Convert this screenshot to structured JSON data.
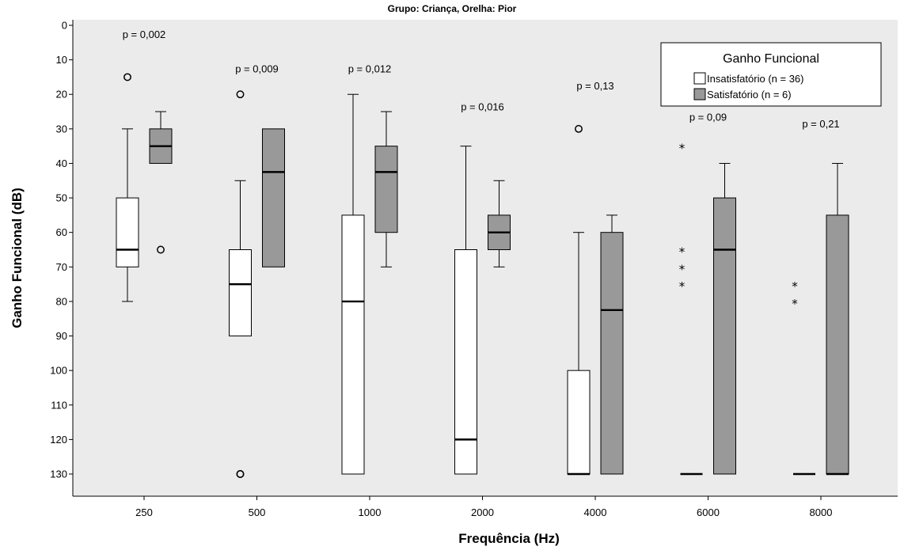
{
  "chart_data": {
    "type": "boxplot",
    "title": "Grupo: Criança, Orelha: Pior",
    "xlabel": "Frequência (Hz)",
    "ylabel": "Ganho Funcional (dB)",
    "ylim": [
      0,
      130
    ],
    "y_reversed": true,
    "y_ticks": [
      "0",
      "10",
      "20",
      "30",
      "40",
      "50",
      "60",
      "70",
      "80",
      "90",
      "100",
      "110",
      "120",
      "130"
    ],
    "categories": [
      "250",
      "500",
      "1000",
      "2000",
      "4000",
      "6000",
      "8000"
    ],
    "p_values": [
      "p = 0,002",
      "p = 0,009",
      "p = 0,012",
      "p = 0,016",
      "p = 0,13",
      "p = 0,09",
      "p = 0,21"
    ],
    "legend": {
      "title": "Ganho Funcional",
      "position": "top-right",
      "entries": [
        "Insatisfatório (n = 36)",
        "Satisfatório (n = 6)"
      ]
    },
    "series": [
      {
        "name": "Insatisfatório (n = 36)",
        "color": "#ffffff",
        "boxes": [
          {
            "category": "250",
            "whisker_low": 30,
            "q1": 50,
            "median": 65,
            "q3": 70,
            "whisker_high": 80,
            "outliers": [
              15
            ],
            "extremes": []
          },
          {
            "category": "500",
            "whisker_low": 45,
            "q1": 65,
            "median": 75,
            "q3": 90,
            "whisker_high": 90,
            "outliers": [
              20,
              130,
              130
            ],
            "extremes": []
          },
          {
            "category": "1000",
            "whisker_low": 20,
            "q1": 55,
            "median": 80,
            "q3": 130,
            "whisker_high": 130,
            "outliers": [],
            "extremes": []
          },
          {
            "category": "2000",
            "whisker_low": 35,
            "q1": 65,
            "median": 120,
            "q3": 130,
            "whisker_high": 130,
            "outliers": [],
            "extremes": []
          },
          {
            "category": "4000",
            "whisker_low": 60,
            "q1": 100,
            "median": 130,
            "q3": 130,
            "whisker_high": 130,
            "outliers": [
              30
            ],
            "extremes": []
          },
          {
            "category": "6000",
            "whisker_low": 130,
            "q1": 130,
            "median": 130,
            "q3": 130,
            "whisker_high": 130,
            "outliers": [],
            "extremes": [
              35,
              65,
              70,
              75
            ]
          },
          {
            "category": "8000",
            "whisker_low": 130,
            "q1": 130,
            "median": 130,
            "q3": 130,
            "whisker_high": 130,
            "outliers": [],
            "extremes": [
              75,
              80
            ]
          }
        ]
      },
      {
        "name": "Satisfatório (n = 6)",
        "color": "#999999",
        "boxes": [
          {
            "category": "250",
            "whisker_low": 25,
            "q1": 30,
            "median": 35,
            "q3": 40,
            "whisker_high": 40,
            "outliers": [
              65
            ],
            "extremes": []
          },
          {
            "category": "500",
            "whisker_low": 30,
            "q1": 30,
            "median": 42.5,
            "q3": 70,
            "whisker_high": 70,
            "outliers": [],
            "extremes": []
          },
          {
            "category": "1000",
            "whisker_low": 25,
            "q1": 35,
            "median": 42.5,
            "q3": 60,
            "whisker_high": 70,
            "outliers": [],
            "extremes": []
          },
          {
            "category": "2000",
            "whisker_low": 45,
            "q1": 55,
            "median": 60,
            "q3": 65,
            "whisker_high": 70,
            "outliers": [],
            "extremes": []
          },
          {
            "category": "4000",
            "whisker_low": 55,
            "q1": 60,
            "median": 82.5,
            "q3": 130,
            "whisker_high": 130,
            "outliers": [],
            "extremes": []
          },
          {
            "category": "6000",
            "whisker_low": 40,
            "q1": 50,
            "median": 65,
            "q3": 130,
            "whisker_high": 130,
            "outliers": [],
            "extremes": []
          },
          {
            "category": "8000",
            "whisker_low": 40,
            "q1": 55,
            "median": 130,
            "q3": 130,
            "whisker_high": 130,
            "outliers": [],
            "extremes": []
          }
        ]
      }
    ],
    "colors": {
      "background": "#ebebeb",
      "insatisfatorio": "#ffffff",
      "satisfatorio": "#999999"
    },
    "grid": false
  }
}
